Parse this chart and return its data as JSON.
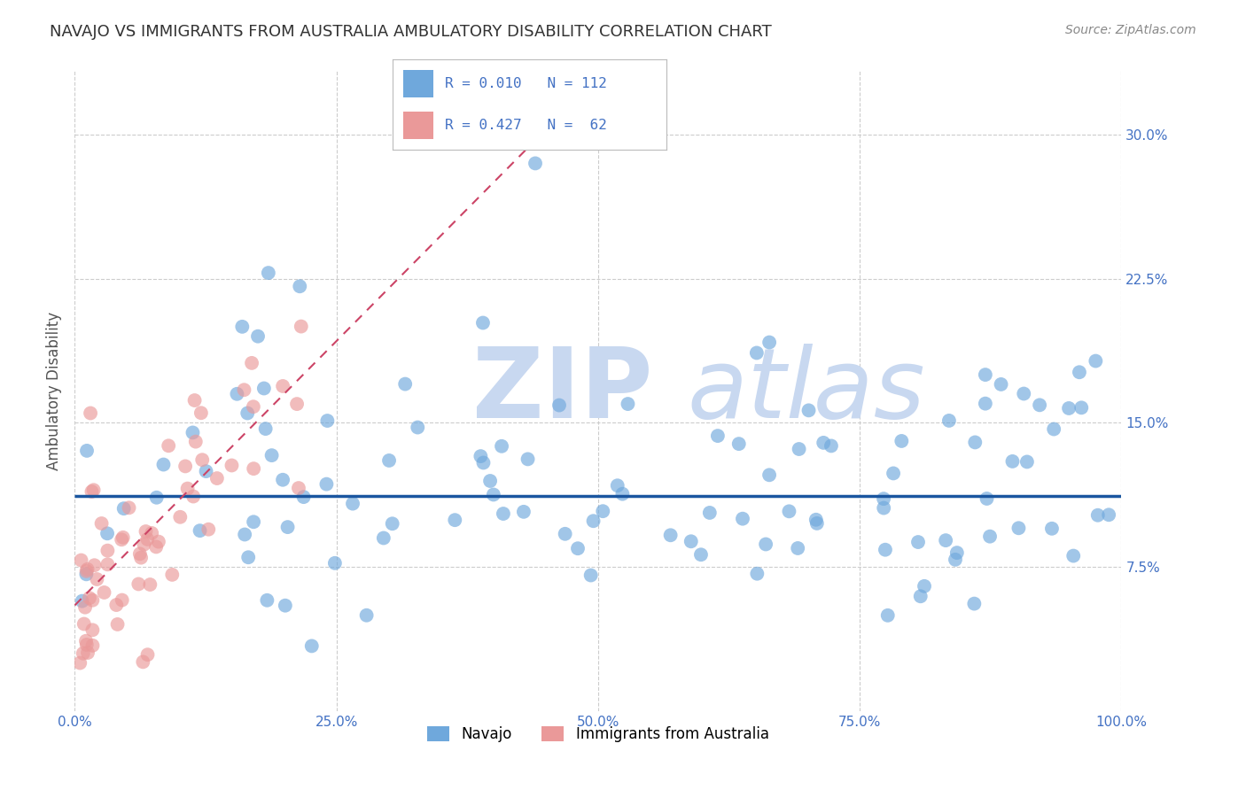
{
  "title": "NAVAJO VS IMMIGRANTS FROM AUSTRALIA AMBULATORY DISABILITY CORRELATION CHART",
  "source": "Source: ZipAtlas.com",
  "ylabel": "Ambulatory Disability",
  "x_min": 0.0,
  "x_max": 1.0,
  "y_min": 0.0,
  "y_max": 0.333,
  "x_ticks": [
    0.0,
    0.25,
    0.5,
    0.75,
    1.0
  ],
  "x_tick_labels": [
    "0.0%",
    "25.0%",
    "50.0%",
    "75.0%",
    "100.0%"
  ],
  "y_ticks": [
    0.075,
    0.15,
    0.225,
    0.3
  ],
  "y_tick_labels": [
    "7.5%",
    "15.0%",
    "22.5%",
    "30.0%"
  ],
  "navajo_color": "#6fa8dc",
  "australia_color": "#ea9999",
  "navajo_R": 0.01,
  "navajo_N": 112,
  "australia_R": 0.427,
  "australia_N": 62,
  "regression_navajo_color": "#1a56a0",
  "regression_australia_color": "#cc4466",
  "watermark_ZIP": "ZIP",
  "watermark_atlas": "atlas",
  "watermark_color": "#c8d8f0",
  "legend_label_navajo": "Navajo",
  "legend_label_australia": "Immigrants from Australia",
  "background_color": "#ffffff",
  "grid_color": "#cccccc",
  "title_color": "#333333",
  "axis_label_color": "#555555",
  "tick_color": "#4472c4",
  "source_color": "#888888",
  "navajo_line_y": 0.112,
  "australia_line_slope": 0.55,
  "australia_line_intercept": 0.055
}
